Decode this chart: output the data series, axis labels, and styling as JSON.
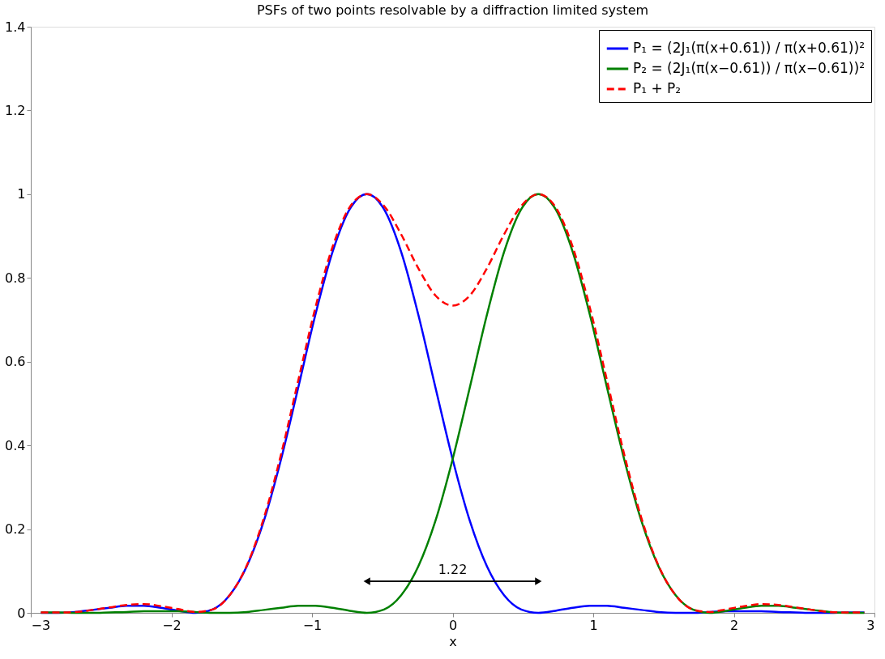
{
  "chart_data": {
    "type": "line",
    "title": "PSFs of two points resolvable by a diffraction limited system",
    "xlabel": "x",
    "x": [
      -2.928,
      -2.806,
      -2.684,
      -2.562,
      -2.44,
      -2.318,
      -2.196,
      -2.074,
      -1.952,
      -1.83,
      -1.708,
      -1.586,
      -1.464,
      -1.342,
      -1.22,
      -1.098,
      -0.976,
      -0.854,
      -0.732,
      -0.61,
      -0.488,
      -0.366,
      -0.244,
      -0.122,
      0,
      0.122,
      0.244,
      0.366,
      0.488,
      0.61,
      0.732,
      0.854,
      0.976,
      1.098,
      1.22,
      1.342,
      1.464,
      1.586,
      1.708,
      1.83,
      1.952,
      2.074,
      2.196,
      2.318,
      2.44,
      2.562,
      2.684,
      2.806,
      2.928
    ],
    "series": [
      {
        "name": "P₁ = (2J₁(π(x+0.61)) / π(x+0.61))²",
        "color": "#0000ff",
        "line_style": "solid",
        "values": [
          0.0,
          0.0,
          0.002,
          0.007,
          0.012,
          0.017,
          0.017,
          0.012,
          0.005,
          0.0,
          0.008,
          0.042,
          0.111,
          0.22,
          0.367,
          0.538,
          0.712,
          0.862,
          0.964,
          1.0,
          0.964,
          0.862,
          0.712,
          0.538,
          0.367,
          0.22,
          0.111,
          0.042,
          0.008,
          0.0,
          0.005,
          0.012,
          0.017,
          0.017,
          0.012,
          0.007,
          0.002,
          0.0,
          0.0,
          0.002,
          0.004,
          0.004,
          0.004,
          0.002,
          0.001,
          0.0,
          0.0,
          0.001,
          0.001
        ]
      },
      {
        "name": "P₂ = (2J₁(π(x−0.61)) / π(x−0.61))²",
        "color": "#008000",
        "line_style": "solid",
        "values": [
          0.001,
          0.001,
          0.0,
          0.0,
          0.001,
          0.002,
          0.004,
          0.004,
          0.004,
          0.002,
          0.0,
          0.0,
          0.002,
          0.007,
          0.012,
          0.017,
          0.017,
          0.012,
          0.005,
          0.0,
          0.008,
          0.042,
          0.111,
          0.22,
          0.367,
          0.538,
          0.712,
          0.862,
          0.964,
          1.0,
          0.964,
          0.862,
          0.712,
          0.538,
          0.367,
          0.22,
          0.111,
          0.042,
          0.008,
          0.0,
          0.005,
          0.012,
          0.017,
          0.017,
          0.012,
          0.007,
          0.002,
          0.0,
          0.0
        ]
      },
      {
        "name": "P₁ + P₂",
        "color": "#ff0000",
        "line_style": "dashed",
        "values": [
          0.001,
          0.001,
          0.002,
          0.007,
          0.013,
          0.019,
          0.021,
          0.016,
          0.009,
          0.002,
          0.008,
          0.042,
          0.113,
          0.227,
          0.379,
          0.555,
          0.729,
          0.874,
          0.969,
          1.0,
          0.972,
          0.904,
          0.823,
          0.758,
          0.734,
          0.758,
          0.823,
          0.904,
          0.972,
          1.0,
          0.969,
          0.874,
          0.729,
          0.555,
          0.379,
          0.227,
          0.113,
          0.042,
          0.008,
          0.002,
          0.009,
          0.016,
          0.021,
          0.019,
          0.013,
          0.007,
          0.002,
          0.001,
          0.001
        ]
      }
    ],
    "xlim": [
      -3,
      3
    ],
    "xticks": [
      -3,
      -2,
      -1,
      0,
      1,
      2,
      3
    ],
    "ylim": [
      0,
      1.4
    ],
    "yticks": [
      0,
      0.2,
      0.4,
      0.6,
      0.8,
      1,
      1.2,
      1.4
    ],
    "annotations": [
      "1.22"
    ],
    "legend": "top right",
    "grid": false
  }
}
